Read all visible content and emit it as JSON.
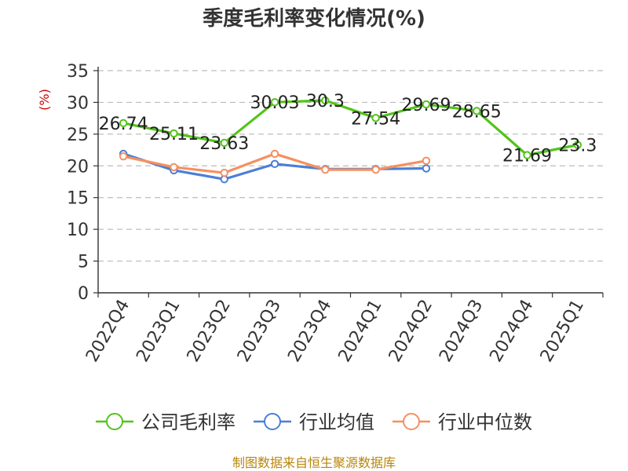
{
  "chart_data": {
    "type": "line",
    "title": "季度毛利率变化情况(%)",
    "ylabel": "(%)",
    "ylim": [
      0,
      35
    ],
    "yticks": [
      0,
      5,
      10,
      15,
      20,
      25,
      30,
      35
    ],
    "grid": true,
    "legend_position": "bottom",
    "categories": [
      "2022Q4",
      "2023Q1",
      "2023Q2",
      "2023Q3",
      "2023Q4",
      "2024Q1",
      "2024Q2",
      "2024Q3",
      "2024Q4",
      "2025Q1"
    ],
    "series": [
      {
        "name": "公司毛利率",
        "color": "#52c41a",
        "values": [
          26.74,
          25.11,
          23.63,
          30.03,
          30.3,
          27.54,
          29.69,
          28.65,
          21.69,
          23.3
        ],
        "labels": [
          "26.74",
          "25.11",
          "23.63",
          "30.03",
          "30.3",
          "27.54",
          "29.69",
          "28.65",
          "21.69",
          "23.3"
        ]
      },
      {
        "name": "行业均值",
        "color": "#4a7fd6",
        "values": [
          21.9,
          19.3,
          17.9,
          20.3,
          19.5,
          19.5,
          19.6,
          null,
          null,
          null
        ]
      },
      {
        "name": "行业中位数",
        "color": "#f59060",
        "values": [
          21.5,
          19.8,
          18.9,
          21.9,
          19.4,
          19.4,
          20.8,
          null,
          null,
          null
        ]
      }
    ],
    "source": "制图数据来自恒生聚源数据库"
  }
}
